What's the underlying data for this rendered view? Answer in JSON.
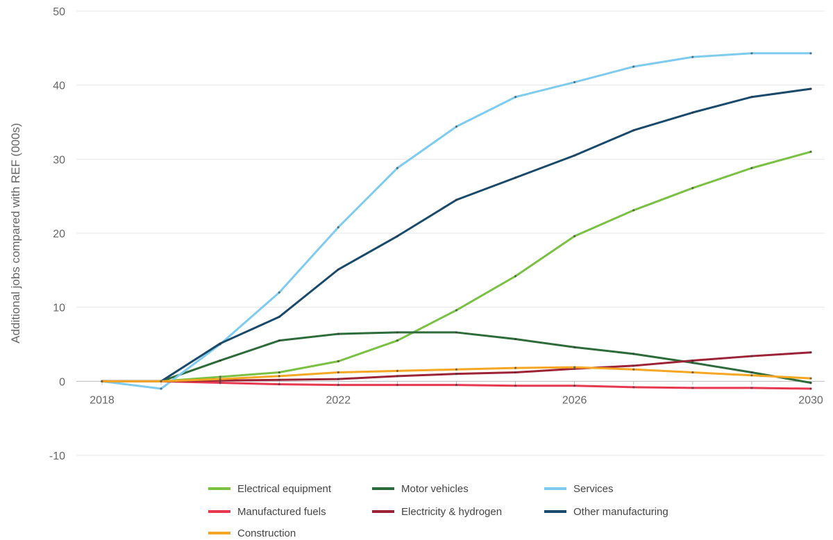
{
  "chart_data": {
    "type": "line",
    "ylabel": "Additional jobs compared with REF (000s)",
    "xlabel": "",
    "x": [
      2018,
      2019,
      2020,
      2021,
      2022,
      2023,
      2024,
      2025,
      2026,
      2027,
      2028,
      2029,
      2030
    ],
    "xticks": [
      "2018",
      "2022",
      "2026",
      "2030"
    ],
    "yticks": [
      "-10",
      "0",
      "10",
      "20",
      "30",
      "40",
      "50"
    ],
    "ylim": [
      -10,
      50
    ],
    "xlim": [
      2018,
      2030
    ],
    "grid": "horizontal",
    "legend_position": "bottom",
    "series": [
      {
        "name": "Electrical equipment",
        "color": "#7ac143",
        "values": [
          0,
          0,
          0.6,
          1.2,
          2.7,
          5.5,
          9.6,
          14.2,
          19.6,
          23.1,
          26.1,
          28.8,
          31
        ]
      },
      {
        "name": "Motor vehicles",
        "color": "#2e6b3a",
        "values": [
          0,
          0,
          2.8,
          5.5,
          6.4,
          6.6,
          6.6,
          5.7,
          4.6,
          3.7,
          2.5,
          1.2,
          -0.2
        ]
      },
      {
        "name": "Services",
        "color": "#7ecbf0",
        "values": [
          0,
          -1,
          5,
          12,
          20.8,
          28.8,
          34.4,
          38.4,
          40.4,
          42.5,
          43.8,
          44.3,
          44.3
        ]
      },
      {
        "name": "Manufactured fuels",
        "color": "#e8384f",
        "values": [
          0,
          0,
          -0.2,
          -0.4,
          -0.5,
          -0.5,
          -0.5,
          -0.6,
          -0.6,
          -0.8,
          -0.9,
          -0.9,
          -1
        ]
      },
      {
        "name": "Electricity & hydrogen",
        "color": "#9b2335",
        "values": [
          0,
          0,
          0.1,
          0.2,
          0.3,
          0.7,
          1.0,
          1.2,
          1.7,
          2.1,
          2.8,
          3.4,
          3.9
        ]
      },
      {
        "name": "Other manufacturing",
        "color": "#1a4a6b",
        "values": [
          0,
          0,
          5.1,
          8.7,
          15.1,
          19.6,
          24.5,
          27.5,
          30.5,
          33.9,
          36.3,
          38.4,
          39.5
        ]
      },
      {
        "name": "Construction",
        "color": "#f5a623",
        "values": [
          0,
          0,
          0.3,
          0.7,
          1.2,
          1.4,
          1.6,
          1.8,
          1.9,
          1.6,
          1.2,
          0.8,
          0.4
        ]
      }
    ]
  }
}
